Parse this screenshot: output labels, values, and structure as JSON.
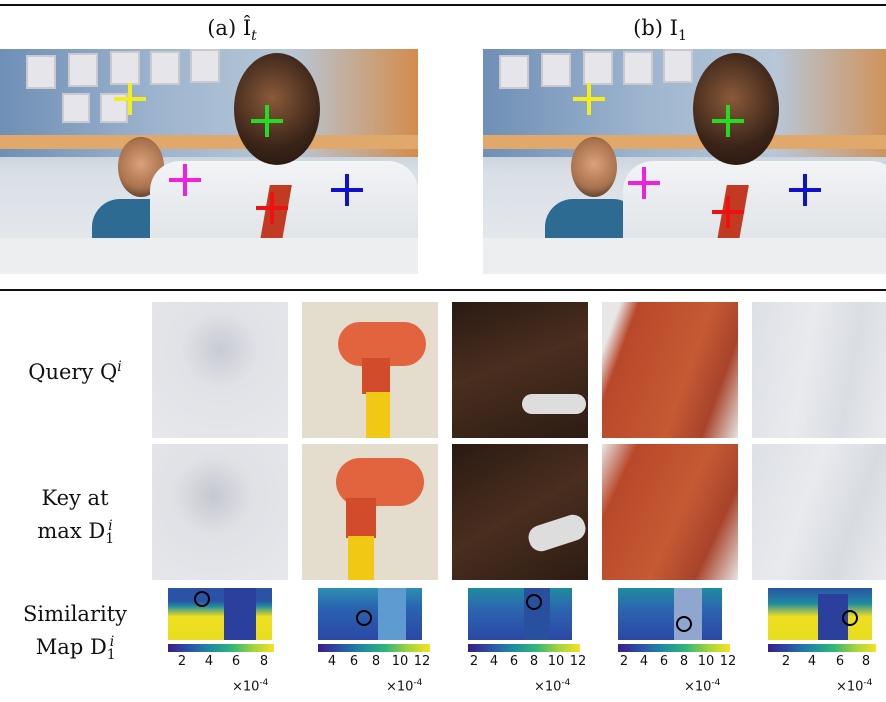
{
  "top": {
    "caption_a": "(a) Î",
    "caption_a_sub": "t",
    "caption_b": "(b) I",
    "caption_b_sub": "1"
  },
  "markers": [
    {
      "color": "#f3ee1b",
      "name": "yellow"
    },
    {
      "color": "#22dd22",
      "name": "green"
    },
    {
      "color": "#ee22dd",
      "name": "magenta"
    },
    {
      "color": "#ee1111",
      "name": "red"
    },
    {
      "color": "#1111cc",
      "name": "blue"
    }
  ],
  "rows": {
    "query": {
      "text": "Query Q",
      "sup": "i"
    },
    "key_line1": "Key at",
    "key_line2": "max D",
    "key_sub": "1",
    "key_sup": "i",
    "sim_line1": "Similarity",
    "sim_line2": "Map D",
    "sim_sub": "1",
    "sim_sup": "i"
  },
  "colorbars": [
    {
      "ticks": [
        "2",
        "4",
        "6",
        "8"
      ],
      "exponent": "×10",
      "power": "-4"
    },
    {
      "ticks": [
        "4",
        "6",
        "8",
        "10",
        "12"
      ],
      "exponent": "×10",
      "power": "-4"
    },
    {
      "ticks": [
        "2",
        "4",
        "6",
        "8",
        "10",
        "12"
      ],
      "exponent": "×10",
      "power": "-4"
    },
    {
      "ticks": [
        "2",
        "4",
        "6",
        "8",
        "10",
        "12"
      ],
      "exponent": "×10",
      "power": "-4"
    },
    {
      "ticks": [
        "2",
        "4",
        "6",
        "8"
      ],
      "exponent": "×10",
      "power": "-4"
    }
  ]
}
